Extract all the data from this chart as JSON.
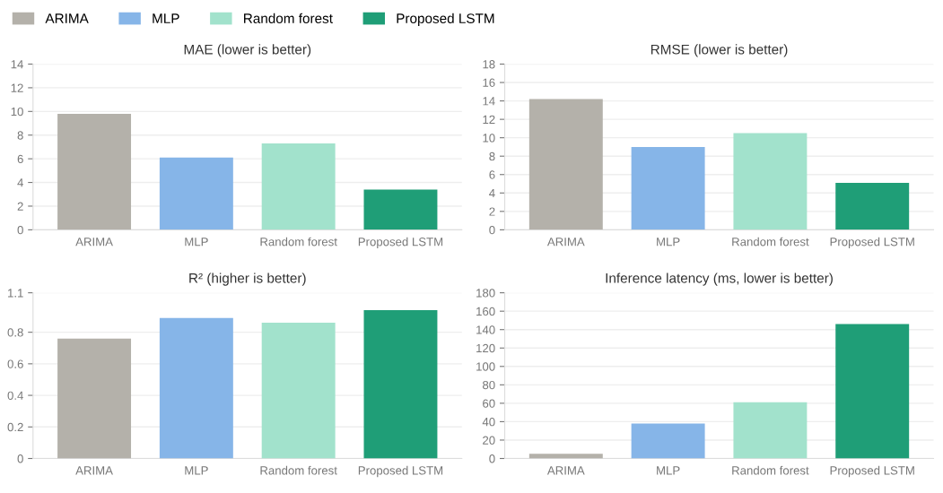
{
  "chart_data": [
    {
      "type": "bar",
      "title": "MAE (lower is better)",
      "categories": [
        "ARIMA",
        "MLP",
        "Random forest",
        "Proposed LSTM"
      ],
      "stacked": true,
      "series": [
        {
          "name": "ARIMA",
          "color": "#b4b1aa",
          "values": [
            9.8,
            null,
            null,
            null
          ]
        },
        {
          "name": "MLP",
          "color": "#86b5e8",
          "values": [
            null,
            6.1,
            null,
            null
          ]
        },
        {
          "name": "Random forest",
          "color": "#a2e2cc",
          "values": [
            null,
            null,
            7.3,
            null
          ]
        },
        {
          "name": "Proposed LSTM",
          "color": "#1f9e77",
          "values": [
            null,
            null,
            null,
            3.4
          ]
        }
      ],
      "ylim": [
        0,
        14
      ],
      "yticks": [
        0,
        2,
        4,
        6,
        8,
        10,
        12,
        14
      ],
      "grid": "y",
      "legend": "top left"
    },
    {
      "type": "bar",
      "title": "RMSE (lower is better)",
      "categories": [
        "ARIMA",
        "MLP",
        "Random forest",
        "Proposed LSTM"
      ],
      "values": [
        14.2,
        9.0,
        10.5,
        5.1
      ],
      "colors": [
        "#b4b1aa",
        "#86b5e8",
        "#a2e2cc",
        "#1f9e77"
      ],
      "ylim": [
        0,
        18
      ],
      "yticks": [
        0,
        2,
        4,
        6,
        8,
        10,
        12,
        14,
        16,
        18
      ],
      "grid": "y"
    },
    {
      "type": "bar",
      "title": "R² (higher is better)",
      "categories": [
        "ARIMA",
        "MLP",
        "Random forest",
        "Proposed LSTM"
      ],
      "values": [
        0.76,
        0.89,
        0.86,
        0.94
      ],
      "colors": [
        "#b4b1aa",
        "#86b5e8",
        "#a2e2cc",
        "#1f9e77"
      ],
      "ylim": [
        0,
        1.05
      ],
      "yticks": [
        0,
        0.2,
        0.4,
        0.6,
        0.8,
        {
          "value": 1.05,
          "label": "1.1"
        }
      ],
      "grid": "y"
    },
    {
      "type": "bar",
      "title": "Inference latency (ms, lower is better)",
      "categories": [
        "ARIMA",
        "MLP",
        "Random forest",
        "Proposed LSTM"
      ],
      "values": [
        5,
        38,
        61,
        146
      ],
      "colors": [
        "#b4b1aa",
        "#86b5e8",
        "#a2e2cc",
        "#1f9e77"
      ],
      "ylim": [
        0,
        180
      ],
      "yticks": [
        0,
        20,
        40,
        60,
        80,
        100,
        120,
        140,
        160,
        180
      ],
      "grid": "y"
    }
  ]
}
